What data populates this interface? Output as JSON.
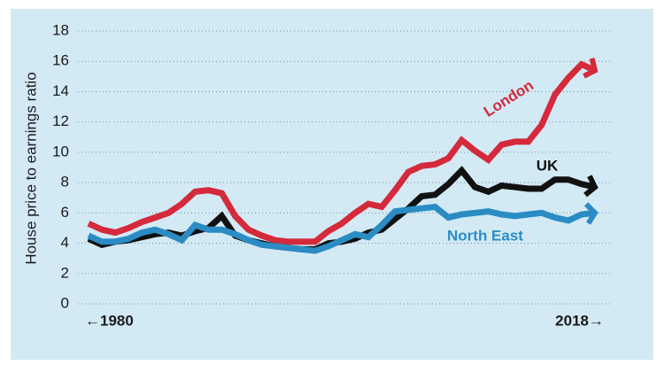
{
  "chart_data": {
    "type": "line",
    "y_label": "House price to earnings ratio",
    "x": [
      1980,
      1981,
      1982,
      1983,
      1984,
      1985,
      1986,
      1987,
      1988,
      1989,
      1990,
      1991,
      1992,
      1993,
      1994,
      1995,
      1996,
      1997,
      1998,
      1999,
      2000,
      2001,
      2002,
      2003,
      2004,
      2005,
      2006,
      2007,
      2008,
      2009,
      2010,
      2011,
      2012,
      2013,
      2014,
      2015,
      2016,
      2017,
      2018
    ],
    "series": [
      {
        "name": "London",
        "color": "#d42a3c",
        "values": [
          5.3,
          4.9,
          4.7,
          5.0,
          5.4,
          5.7,
          6.0,
          6.6,
          7.4,
          7.5,
          7.3,
          5.8,
          4.9,
          4.5,
          4.2,
          4.1,
          4.1,
          4.1,
          4.8,
          5.3,
          6.0,
          6.6,
          6.4,
          7.5,
          8.7,
          9.1,
          9.2,
          9.6,
          10.8,
          10.1,
          9.5,
          10.5,
          10.7,
          10.7,
          11.8,
          13.8,
          14.9,
          15.8,
          15.4
        ]
      },
      {
        "name": "UK",
        "color": "#111111",
        "values": [
          4.3,
          3.9,
          4.1,
          4.2,
          4.4,
          4.6,
          4.7,
          4.5,
          4.8,
          5.0,
          5.8,
          4.5,
          4.2,
          4.0,
          3.8,
          3.7,
          3.6,
          3.6,
          4.0,
          4.1,
          4.3,
          4.7,
          4.9,
          5.6,
          6.3,
          7.1,
          7.2,
          7.9,
          8.8,
          7.7,
          7.4,
          7.8,
          7.7,
          7.6,
          7.6,
          8.2,
          8.2,
          7.9,
          7.7
        ]
      },
      {
        "name": "North East",
        "color": "#2b8cc4",
        "values": [
          4.5,
          4.1,
          4.1,
          4.3,
          4.7,
          4.9,
          4.6,
          4.2,
          5.2,
          4.9,
          4.9,
          4.6,
          4.2,
          3.9,
          3.8,
          3.7,
          3.6,
          3.5,
          3.8,
          4.2,
          4.6,
          4.4,
          5.2,
          6.1,
          6.2,
          6.3,
          6.4,
          5.7,
          5.9,
          6.0,
          6.1,
          5.9,
          5.8,
          5.9,
          6.0,
          5.7,
          5.5,
          5.9,
          6.0
        ]
      }
    ],
    "xlim": [
      1980,
      2018
    ],
    "xticks": [
      {
        "value": 1980,
        "label": "←1980"
      },
      {
        "value": 2018,
        "label": "2018→"
      }
    ],
    "ylim": [
      0,
      18
    ],
    "yticks": [
      0,
      2,
      4,
      6,
      8,
      10,
      12,
      14,
      16,
      18
    ],
    "grid": true
  }
}
